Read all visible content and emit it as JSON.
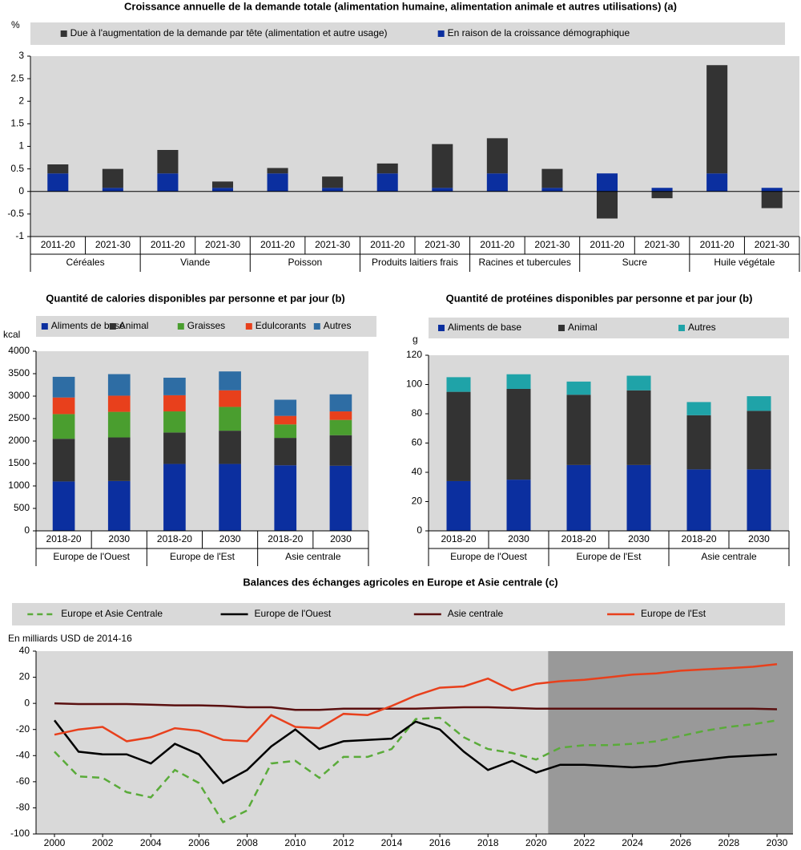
{
  "chart_data": [
    {
      "type": "bar",
      "stacked": true,
      "title": "Croissance annuelle de la demande totale (alimentation humaine, alimentation animale et autres utilisations) (a)",
      "ylabel": "%",
      "categories": [
        "2011-20",
        "2021-30",
        "2011-20",
        "2021-30",
        "2011-20",
        "2021-30",
        "2011-20",
        "2021-30",
        "2011-20",
        "2021-30",
        "2011-20",
        "2021-30",
        "2011-20",
        "2021-30"
      ],
      "groups": [
        "Céréales",
        "Viande",
        "Poisson",
        "Produits laitiers frais",
        "Racines et tubercules",
        "Sucre",
        "Huile végétale"
      ],
      "series": [
        {
          "name": "En raison de la croissance démographique",
          "color": "#0b2f9f",
          "values": [
            0.4,
            0.08,
            0.4,
            0.08,
            0.4,
            0.08,
            0.4,
            0.08,
            0.4,
            0.08,
            0.4,
            0.08,
            0.4,
            0.08
          ]
        },
        {
          "name": "Due à l'augmentation de la demande par tête (alimentation et autre usage)",
          "color": "#333333",
          "values": [
            0.2,
            0.42,
            0.52,
            0.14,
            0.12,
            0.25,
            0.22,
            0.97,
            0.78,
            0.42,
            -0.6,
            -0.15,
            2.4,
            -0.37
          ]
        }
      ],
      "legend_order": [
        1,
        0
      ],
      "ylim": [
        -1,
        3
      ],
      "yticks": [
        -1,
        -0.5,
        0,
        0.5,
        1,
        1.5,
        2,
        2.5,
        3
      ],
      "grid": false
    },
    {
      "type": "bar",
      "stacked": true,
      "title": "Quantité de calories disponibles par personne et par jour (b)",
      "ylabel": "kcal",
      "categories": [
        "2018-20",
        "2030",
        "2018-20",
        "2030",
        "2018-20",
        "2030"
      ],
      "groups": [
        "Europe de l'Ouest",
        "Europe de l'Est",
        "Asie centrale"
      ],
      "series": [
        {
          "name": "Aliments de base",
          "color": "#0b2f9f",
          "values": [
            1100,
            1110,
            1490,
            1490,
            1460,
            1450
          ]
        },
        {
          "name": "Animal",
          "color": "#333333",
          "values": [
            950,
            970,
            700,
            740,
            610,
            680
          ]
        },
        {
          "name": "Graisses",
          "color": "#4a9e2f",
          "values": [
            550,
            570,
            470,
            530,
            300,
            340
          ]
        },
        {
          "name": "Edulcorants",
          "color": "#e8401c",
          "values": [
            370,
            360,
            360,
            370,
            190,
            190
          ]
        },
        {
          "name": "Autres",
          "color": "#2e6da4",
          "values": [
            460,
            480,
            390,
            420,
            360,
            380
          ]
        }
      ],
      "ylim": [
        0,
        4000
      ],
      "yticks": [
        0,
        500,
        1000,
        1500,
        2000,
        2500,
        3000,
        3500,
        4000
      ],
      "grid": false
    },
    {
      "type": "bar",
      "stacked": true,
      "title": "Quantité de protéines disponibles par personne et par jour (b)",
      "ylabel": "g",
      "categories": [
        "2018-20",
        "2030",
        "2018-20",
        "2030",
        "2018-20",
        "2030"
      ],
      "groups": [
        "Europe de l'Ouest",
        "Europe de l'Est",
        "Asie centrale"
      ],
      "series": [
        {
          "name": "Aliments de base",
          "color": "#0b2f9f",
          "values": [
            34,
            35,
            45,
            45,
            42,
            42
          ]
        },
        {
          "name": "Animal",
          "color": "#333333",
          "values": [
            61,
            62,
            48,
            51,
            37,
            40
          ]
        },
        {
          "name": "Autres",
          "color": "#1fa3a8",
          "values": [
            10,
            10,
            9,
            10,
            9,
            10
          ]
        }
      ],
      "ylim": [
        0,
        120
      ],
      "yticks": [
        0,
        20,
        40,
        60,
        80,
        100,
        120
      ],
      "grid": false
    },
    {
      "type": "line",
      "title": "Balances des échanges agricoles en Europe et Asie centrale (c)",
      "ylabel": "En milliards USD de 2014-16",
      "x": [
        2000,
        2001,
        2002,
        2003,
        2004,
        2005,
        2006,
        2007,
        2008,
        2009,
        2010,
        2011,
        2012,
        2013,
        2014,
        2015,
        2016,
        2017,
        2018,
        2019,
        2020,
        2021,
        2022,
        2023,
        2024,
        2025,
        2026,
        2027,
        2028,
        2029,
        2030
      ],
      "series": [
        {
          "name": "Europe et Asie Centrale",
          "color": "#5aab3a",
          "dashed": true,
          "values": [
            -37,
            -56,
            -57,
            -68,
            -72,
            -51,
            -61,
            -91,
            -82,
            -46,
            -44,
            -57,
            -41,
            -41,
            -35,
            -12,
            -11,
            -26,
            -35,
            -38,
            -43,
            -34,
            -32,
            -32,
            -31,
            -29,
            -25,
            -21,
            -18,
            -16,
            -13
          ]
        },
        {
          "name": "Europe de l'Ouest",
          "color": "#000000",
          "dashed": false,
          "values": [
            -13,
            -37,
            -39,
            -39,
            -46,
            -31,
            -39,
            -61,
            -51,
            -33,
            -20,
            -35,
            -29,
            -28,
            -27,
            -14,
            -20,
            -37,
            -51,
            -44,
            -53,
            -47,
            -47,
            -48,
            -49,
            -48,
            -45,
            -43,
            -41,
            -40,
            -39
          ]
        },
        {
          "name": "Asie centrale",
          "color": "#5a1010",
          "dashed": false,
          "values": [
            0,
            -0.5,
            -0.5,
            -0.5,
            -1,
            -1.5,
            -1.5,
            -2,
            -3,
            -3,
            -5,
            -5,
            -4,
            -4,
            -4,
            -4,
            -3.5,
            -3,
            -3,
            -3.5,
            -4,
            -4,
            -4,
            -4,
            -4,
            -4,
            -4,
            -4,
            -4,
            -4,
            -4.5
          ]
        },
        {
          "name": "Europe de l'Est",
          "color": "#e8401c",
          "dashed": false,
          "values": [
            -24,
            -20,
            -18,
            -29,
            -26,
            -19,
            -21,
            -28,
            -29,
            -9,
            -18,
            -19,
            -8,
            -9,
            -2,
            6,
            12,
            13,
            19,
            10,
            15,
            17,
            18,
            20,
            22,
            23,
            25,
            26,
            27,
            28,
            30
          ]
        }
      ],
      "projection_start": 2020.5,
      "projection_color": "#999999",
      "xlim": [
        2000,
        2030
      ],
      "xticks": [
        2000,
        2002,
        2004,
        2006,
        2008,
        2010,
        2012,
        2014,
        2016,
        2018,
        2020,
        2022,
        2024,
        2026,
        2028,
        2030
      ],
      "ylim": [
        -100,
        40
      ],
      "yticks": [
        -100,
        -80,
        -60,
        -40,
        -20,
        0,
        20,
        40
      ],
      "grid": false
    }
  ]
}
